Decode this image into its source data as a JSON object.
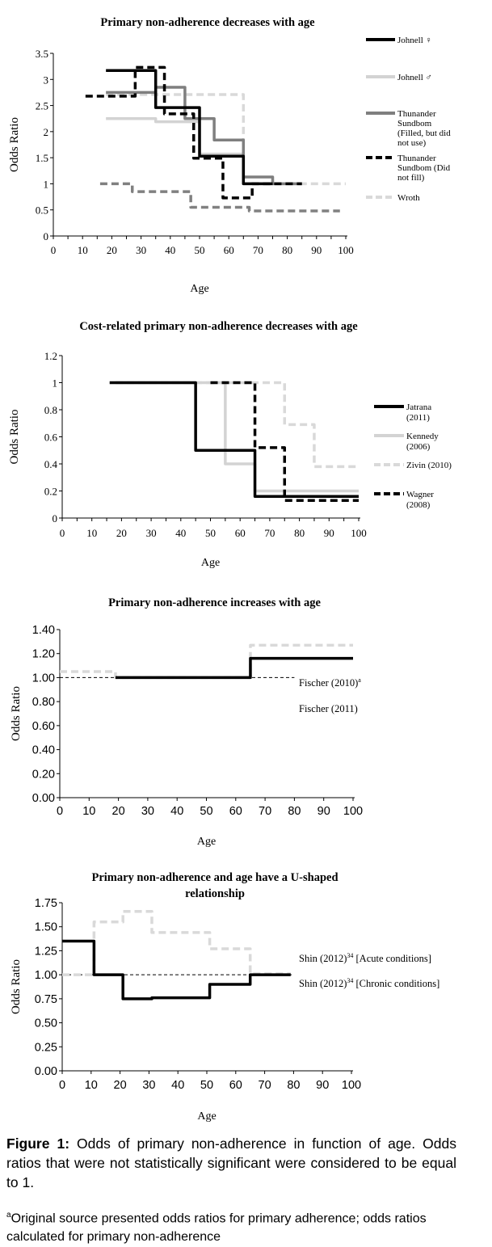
{
  "chart_data": [
    {
      "type": "line",
      "title": "Primary non-adherence decreases with age",
      "xlabel": "Age",
      "ylabel": "Odds Ratio",
      "xlim": [
        0,
        100
      ],
      "ylim": [
        0,
        3.5
      ],
      "xticks": [
        "0",
        "10",
        "20",
        "30",
        "40",
        "50",
        "60",
        "70",
        "80",
        "90",
        "100"
      ],
      "yticks": [
        "0",
        "0.5",
        "1",
        "1.5",
        "2",
        "2.5",
        "3",
        "3.5"
      ],
      "ytick_values": [
        0,
        0.5,
        1,
        1.5,
        2,
        2.5,
        3,
        3.5
      ],
      "series": [
        {
          "name": "",
          "color": "#808080",
          "dashed": true,
          "steps": [
            [
              16,
              27,
              1.0
            ],
            [
              27,
              47,
              0.85
            ],
            [
              47,
              67,
              0.55
            ],
            [
              67,
              98,
              0.48
            ]
          ]
        },
        {
          "name": "Wroth",
          "color": "#d9d9d9",
          "dashed": true,
          "steps": [
            [
              18,
              65,
              2.71
            ],
            [
              65,
              100,
              1.0
            ]
          ]
        },
        {
          "name": "Johnell ♂",
          "color": "#d3d3d3",
          "dashed": false,
          "steps": [
            [
              18,
              35,
              2.25
            ],
            [
              35,
              50,
              2.19
            ],
            [
              50,
              65,
              1.57
            ],
            [
              65,
              85,
              1.0
            ]
          ]
        },
        {
          "name": "Thunander Sundbom (Filled, but did not use)",
          "color": "#7f7f7f",
          "dashed": false,
          "steps": [
            [
              18,
              35,
              2.75
            ],
            [
              35,
              45,
              2.85
            ],
            [
              45,
              55,
              2.25
            ],
            [
              55,
              65,
              1.84
            ],
            [
              65,
              75,
              1.13
            ],
            [
              75,
              85,
              1.0
            ]
          ]
        },
        {
          "name": "Johnell ♀",
          "color": "#000000",
          "dashed": false,
          "steps": [
            [
              18,
              35,
              3.17
            ],
            [
              35,
              50,
              2.46
            ],
            [
              50,
              65,
              1.53
            ],
            [
              65,
              75,
              1.0
            ]
          ]
        },
        {
          "name": "Thunander Sundbom (Did not fill)",
          "color": "#000000",
          "dashed": true,
          "steps": [
            [
              11,
              28,
              2.68
            ],
            [
              28,
              38,
              3.23
            ],
            [
              38,
              48,
              2.34
            ],
            [
              48,
              58,
              1.49
            ],
            [
              58,
              68,
              0.73
            ],
            [
              68,
              85,
              1.0
            ]
          ]
        }
      ],
      "legend": [
        {
          "lines": [
            "Johnell ♀"
          ],
          "series": 4
        },
        {
          "lines": [
            "Johnell ♂"
          ],
          "series": 2
        },
        {
          "lines": [
            "Thunander",
            "Sundbom",
            "(Filled, but did",
            "not use)"
          ],
          "series": 3
        },
        {
          "lines": [
            "Thunander",
            "Sundbom (Did",
            "not fill)"
          ],
          "series": 5
        },
        {
          "lines": [
            "Wroth"
          ],
          "series": 1
        }
      ],
      "legend_placement": "right"
    },
    {
      "type": "line",
      "title": "Cost-related primary non-adherence decreases with age",
      "xlabel": "Age",
      "ylabel": "Odds Ratio",
      "xlim": [
        0,
        100
      ],
      "ylim": [
        0,
        1.2
      ],
      "xticks": [
        "0",
        "10",
        "20",
        "30",
        "40",
        "50",
        "60",
        "70",
        "80",
        "90",
        "100"
      ],
      "yticks": [
        "0",
        "0.2",
        "0.4",
        "0.6",
        "0.8",
        "1",
        "1.2"
      ],
      "ytick_values": [
        0,
        0.2,
        0.4,
        0.6,
        0.8,
        1,
        1.2
      ],
      "series": [
        {
          "name": "Zivin (2010)",
          "color": "#d9d9d9",
          "dashed": true,
          "steps": [
            [
              18,
              75,
              1.0
            ],
            [
              75,
              85,
              0.69
            ],
            [
              85,
              100,
              0.38
            ]
          ]
        },
        {
          "name": "Kennedy (2006)",
          "color": "#d3d3d3",
          "dashed": false,
          "steps": [
            [
              18,
              55,
              1.0
            ],
            [
              55,
              65,
              0.4
            ],
            [
              65,
              100,
              0.2
            ]
          ]
        },
        {
          "name": "Jatrana (2011)",
          "color": "#000000",
          "dashed": false,
          "steps": [
            [
              16,
              45,
              1.0
            ],
            [
              45,
              65,
              0.5
            ],
            [
              65,
              100,
              0.16
            ]
          ]
        },
        {
          "name": "Wagner (2008)",
          "color": "#000000",
          "dashed": true,
          "steps": [
            [
              50,
              65,
              1.0
            ],
            [
              65,
              75,
              0.52
            ],
            [
              75,
              100,
              0.13
            ]
          ]
        }
      ],
      "legend": [
        {
          "lines": [
            "Jatrana",
            "(2011)"
          ],
          "series": 2
        },
        {
          "lines": [
            "Kennedy",
            "(2006)"
          ],
          "series": 1
        },
        {
          "lines": [
            "Zivin (2010)"
          ],
          "series": 0
        },
        {
          "lines": [
            "Wagner",
            "(2008)"
          ],
          "series": 3
        }
      ],
      "legend_placement": "right"
    },
    {
      "type": "line",
      "title": "Primary non-adherence increases with age",
      "xlabel": "Age",
      "ylabel": "Odds Ratio",
      "xlim": [
        0,
        100
      ],
      "ylim": [
        0,
        1.4
      ],
      "xticks": [
        "0",
        "10",
        "20",
        "30",
        "40",
        "50",
        "60",
        "70",
        "80",
        "90",
        "100"
      ],
      "yticks": [
        "0.00",
        "0.20",
        "0.40",
        "0.60",
        "0.80",
        "1.00",
        "1.20",
        "1.40"
      ],
      "ytick_values": [
        0,
        0.2,
        0.4,
        0.6,
        0.8,
        1.0,
        1.2,
        1.4
      ],
      "reference_line": {
        "y": 1.0,
        "x": [
          0,
          80
        ]
      },
      "series": [
        {
          "name": "Fischer (2010)",
          "sup": "a",
          "suffix": "",
          "color": "#d9d9d9",
          "dashed": true,
          "steps": [
            [
              0,
              19,
              1.05
            ],
            [
              19,
              65,
              1.0
            ],
            [
              65,
              100,
              1.27
            ]
          ]
        },
        {
          "name": "Fischer (2011)",
          "sup": "",
          "suffix": "",
          "color": "#000000",
          "dashed": false,
          "steps": [
            [
              19,
              65,
              1.0
            ],
            [
              65,
              100,
              1.16
            ]
          ]
        }
      ],
      "legend_placement": "right"
    },
    {
      "type": "line",
      "title": [
        "Primary non-adherence and age have a U-shaped",
        "relationship"
      ],
      "xlabel": "Age",
      "ylabel": "Odds Ratio",
      "xlim": [
        0,
        100
      ],
      "ylim": [
        0,
        1.75
      ],
      "xticks": [
        "0",
        "10",
        "20",
        "30",
        "40",
        "50",
        "60",
        "70",
        "80",
        "90",
        "100"
      ],
      "yticks": [
        "0.00",
        "0.25",
        "0.50",
        "0.75",
        "1.00",
        "1.25",
        "1.50",
        "1.75"
      ],
      "ytick_values": [
        0,
        0.25,
        0.5,
        0.75,
        1.0,
        1.25,
        1.5,
        1.75
      ],
      "reference_line": {
        "y": 1.0,
        "x": [
          0,
          80
        ]
      },
      "series": [
        {
          "name": "Shin (2012)",
          "sup": "34",
          "suffix": " [Acute conditions]",
          "color": "#d9d9d9",
          "dashed": true,
          "steps": [
            [
              0,
              11,
              1.0
            ],
            [
              11,
              21,
              1.55
            ],
            [
              21,
              31,
              1.66
            ],
            [
              31,
              51,
              1.44
            ],
            [
              51,
              65,
              1.27
            ],
            [
              65,
              79,
              1.01
            ]
          ]
        },
        {
          "name": "Shin (2012)",
          "sup": "34",
          "suffix": " [Chronic conditions]",
          "color": "#000000",
          "dashed": false,
          "steps": [
            [
              0,
              11,
              1.35
            ],
            [
              11,
              21,
              1.0
            ],
            [
              21,
              31,
              0.75
            ],
            [
              31,
              51,
              0.76
            ],
            [
              51,
              65,
              0.9
            ],
            [
              65,
              79,
              1.0
            ]
          ]
        }
      ],
      "legend_placement": "right"
    }
  ],
  "caption": {
    "label": "Figure 1:",
    "text": " Odds of primary non-adherence in function of age. Odds ratios that were not statistically significant were considered to be equal to 1."
  },
  "footnote": {
    "sup": "a",
    "text": "Original source presented odds ratios for primary adherence; odds ratios calculated for primary   non-adherence"
  }
}
